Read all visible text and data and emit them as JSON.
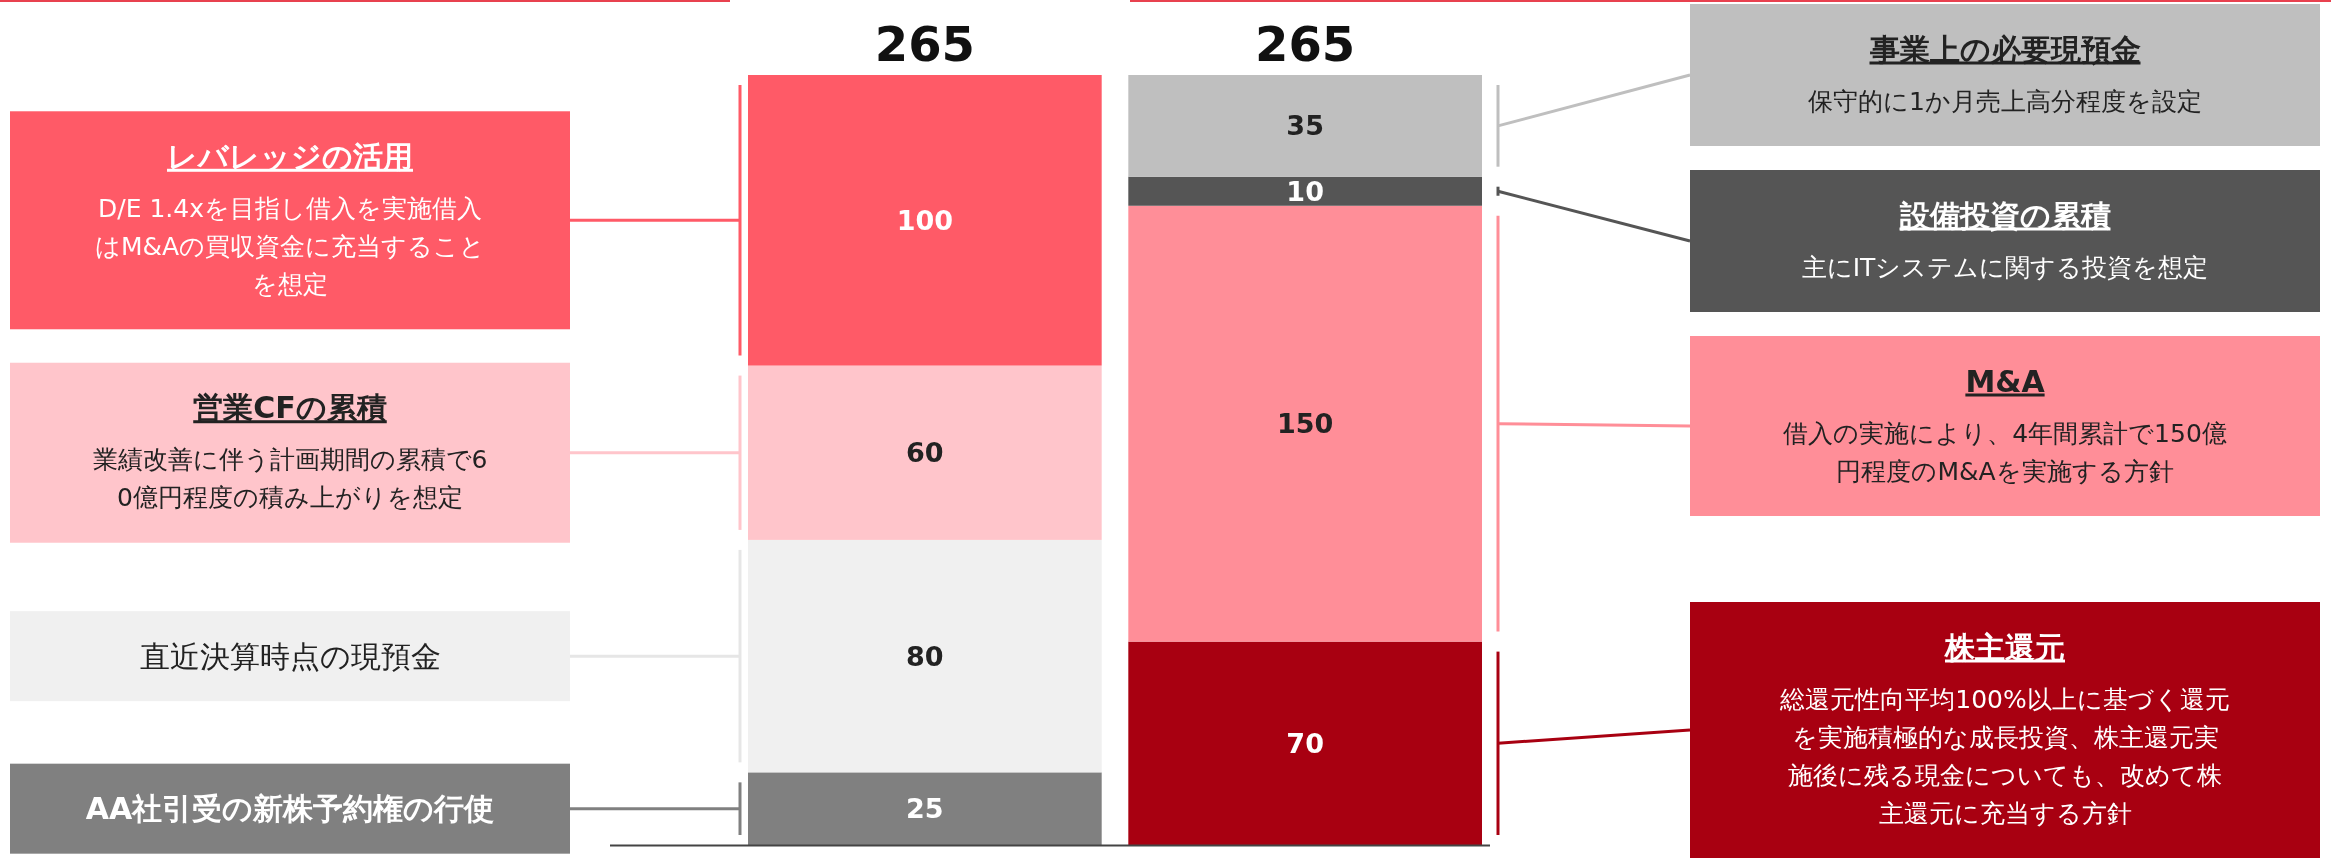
{
  "chart_data": {
    "type": "bar",
    "stacked": true,
    "categories": [
      null,
      null
    ],
    "series": [
      {
        "colors": [
          "#808080",
          "#a80011"
        ],
        "values": [
          25,
          70
        ]
      },
      {
        "colors": [
          "#f0f0f0",
          "#ff8e98"
        ],
        "values": [
          80,
          150
        ]
      },
      {
        "colors": [
          "#ffc5cb",
          "#555555"
        ],
        "values": [
          60,
          10
        ]
      },
      {
        "colors": [
          "#ff5a67",
          "#bfbfbf"
        ],
        "values": [
          100,
          35
        ]
      }
    ],
    "data_labels": true,
    "totals": [
      "265",
      "265"
    ],
    "annotations": [
      "AA社引受の新株予約権の行使",
      "直近決算時点の現預金",
      "営業CFの累積",
      "レバレッジの活用",
      "株主還元",
      "M&A",
      "設備投資の累積",
      "事業上の必要現預金",
      "業績改善に伴う計画期間の累積で60億円程度の積み上がりを想定",
      "D/E 1.4xを目指し借入を実施借入はM&Aの買収資金に充当することを想定",
      "総還元性向平均100%以上に基づく還元を実施積極的な成長投資、株主還元実施後に残る現金についても、改めて株主還元に充当する方針",
      "借入の実施により、4年間累計で150億円程度のM&Aを実施する方針",
      "主にITシステムに関する投資を想定",
      "保守的に1か月売上高分程度を設定"
    ]
  }
}
